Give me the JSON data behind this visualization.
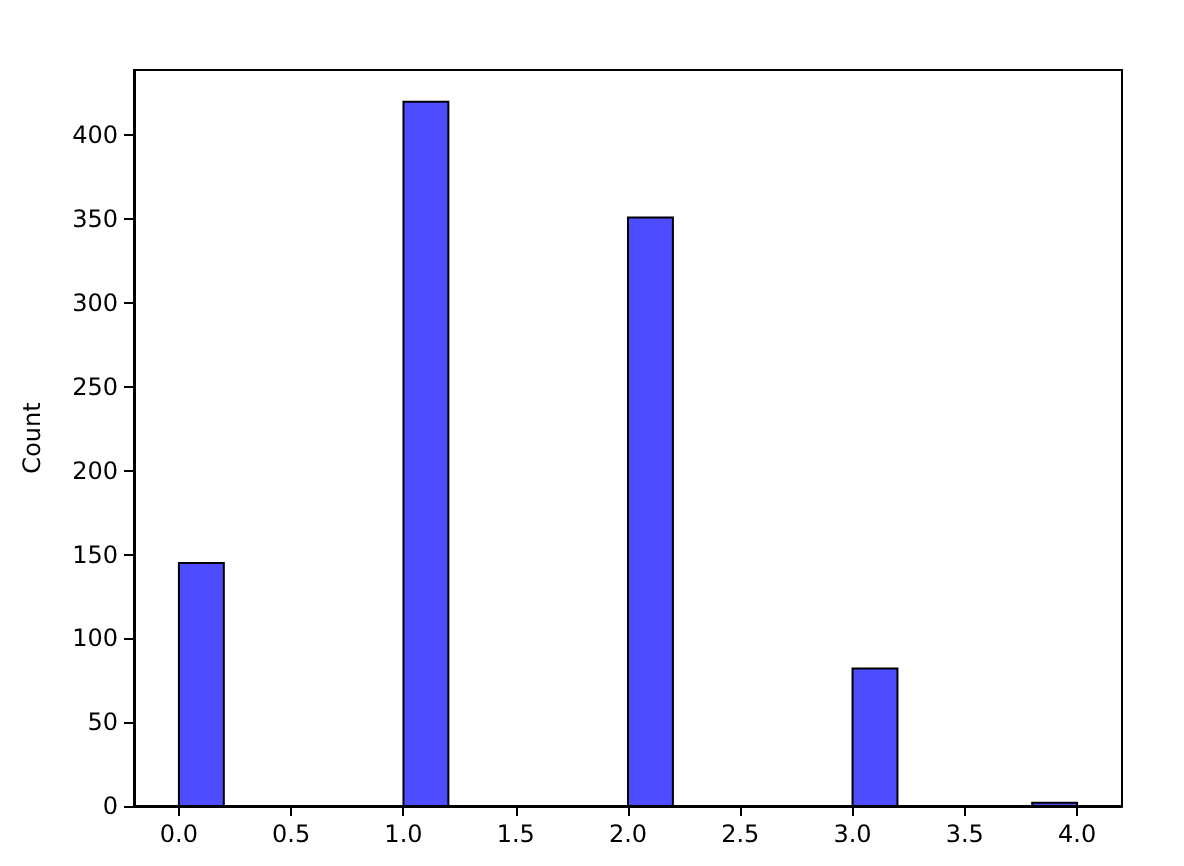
{
  "chart_data": {
    "type": "histogram",
    "ylabel": "Count",
    "color": "#4d4dff",
    "bins": [
      0,
      0.2,
      0.4,
      0.6,
      0.8,
      1.0,
      1.2,
      1.4,
      1.6,
      1.8,
      2.0,
      2.2,
      2.4,
      2.6,
      2.8,
      3.0,
      3.2,
      3.4,
      3.6,
      3.8,
      4.0
    ],
    "values": [
      145,
      0,
      0,
      0,
      0,
      420,
      0,
      0,
      0,
      0,
      351,
      0,
      0,
      0,
      0,
      82,
      0,
      0,
      0,
      2
    ],
    "xlim": [
      -0.2,
      4.2
    ],
    "xticks": [
      {
        "value": 0,
        "label": "0.0"
      },
      {
        "value": 0.5,
        "label": "0.5"
      },
      {
        "value": 1,
        "label": "1.0"
      },
      {
        "value": 1.5,
        "label": "1.5"
      },
      {
        "value": 2,
        "label": "2.0"
      },
      {
        "value": 2.5,
        "label": "2.5"
      },
      {
        "value": 3,
        "label": "3.0"
      },
      {
        "value": 3.5,
        "label": "3.5"
      },
      {
        "value": 4,
        "label": "4.0"
      }
    ],
    "ylim": [
      0,
      439
    ],
    "yticks": [
      0,
      50,
      100,
      150,
      200,
      250,
      300,
      350,
      400
    ]
  }
}
